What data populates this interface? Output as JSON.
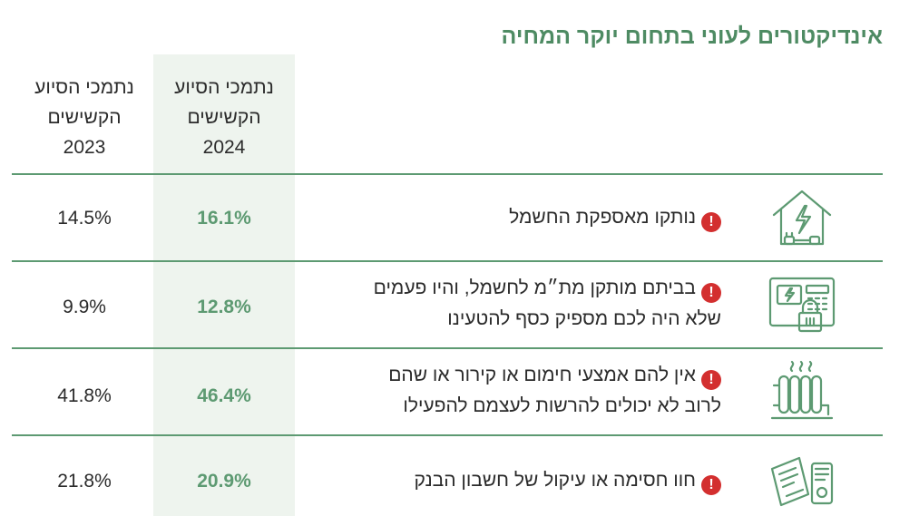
{
  "title": "אינדיקטורים לעוני בתחום יוקר המחיה",
  "columns": {
    "col_2024": [
      "נתמכי הסיוע",
      "הקשישים",
      "2024"
    ],
    "col_2023": [
      "נתמכי הסיוע",
      "הקשישים",
      "2023"
    ]
  },
  "colors": {
    "accent": "#5d9a72",
    "title": "#4e8b63",
    "highlight_bg": "#eef4ee",
    "alert": "#d32f2f"
  },
  "rows": [
    {
      "icon": "house-electricity-icon",
      "alert": "!",
      "lines": [
        "נותקו מאספקת החשמל"
      ],
      "v2024": "16.1%",
      "v2023": "14.5%"
    },
    {
      "icon": "prepaid-meter-icon",
      "alert": "!",
      "lines": [
        "בביתם מותקן מת״מ לחשמל, והיו פעמים",
        "שלא היה לכם מספיק כסף להטעינו"
      ],
      "v2024": "12.8%",
      "v2023": "9.9%"
    },
    {
      "icon": "radiator-icon",
      "alert": "!",
      "lines": [
        "אין להם אמצעי חימום או קירור או שהם",
        "לרוב לא יכולים להרשות לעצמם להפעילו"
      ],
      "v2024": "46.4%",
      "v2023": "41.8%"
    },
    {
      "icon": "bank-documents-icon",
      "alert": "!",
      "lines": [
        "חוו חסימה או עיקול של חשבון הבנק"
      ],
      "v2024": "20.9%",
      "v2023": "21.8%"
    }
  ]
}
